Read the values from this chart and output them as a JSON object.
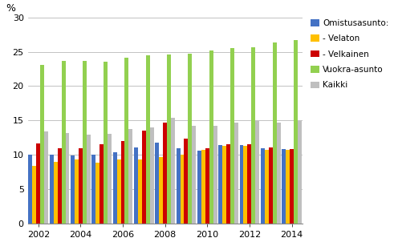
{
  "years": [
    2002,
    2003,
    2004,
    2005,
    2006,
    2007,
    2008,
    2009,
    2010,
    2011,
    2012,
    2013,
    2014
  ],
  "omistusasunto": [
    10.0,
    10.0,
    9.9,
    10.0,
    10.4,
    11.1,
    11.8,
    11.0,
    10.6,
    11.4,
    11.4,
    10.9,
    10.8
  ],
  "velaton": [
    8.4,
    9.0,
    9.3,
    8.8,
    9.3,
    9.3,
    9.7,
    10.0,
    10.7,
    11.3,
    11.3,
    10.7,
    10.7
  ],
  "velkainen": [
    11.6,
    11.0,
    10.9,
    11.5,
    12.0,
    13.5,
    14.7,
    12.3,
    11.0,
    11.5,
    11.5,
    11.1,
    10.8
  ],
  "vuokra_asunto": [
    23.1,
    23.7,
    23.7,
    23.5,
    24.1,
    24.5,
    24.6,
    24.7,
    25.2,
    25.5,
    25.7,
    26.4,
    26.7
  ],
  "kaikki": [
    13.4,
    13.2,
    12.9,
    13.0,
    13.8,
    14.0,
    15.4,
    14.2,
    14.2,
    14.7,
    14.9,
    14.7,
    14.9
  ],
  "colors": {
    "omistusasunto": "#4472C4",
    "velaton": "#FFC000",
    "velkainen": "#CC0000",
    "vuokra_asunto": "#92D050",
    "kaikki": "#BFBFBF"
  },
  "legend_labels": [
    "Omistusasunto:",
    "- Velaton",
    "- Velkainen",
    "Vuokra-asunto",
    "Kaikki"
  ],
  "percent_label": "%",
  "ylim": [
    0,
    30
  ],
  "yticks": [
    0,
    5,
    10,
    15,
    20,
    25,
    30
  ]
}
